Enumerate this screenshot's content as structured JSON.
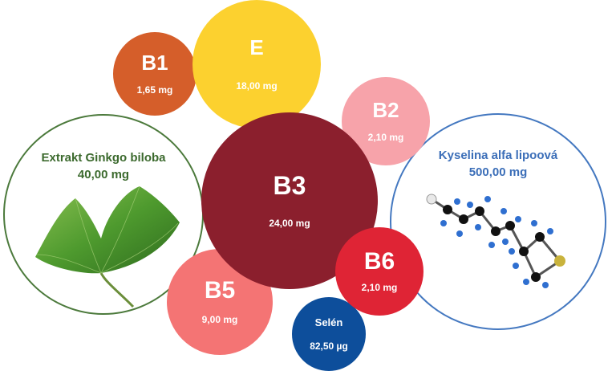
{
  "nutrients": {
    "b1": {
      "name": "B1",
      "amount": "1,65 mg",
      "color": "#D55E2A"
    },
    "e": {
      "name": "E",
      "amount": "18,00 mg",
      "color": "#FCD12F"
    },
    "b2": {
      "name": "B2",
      "amount": "2,10 mg",
      "color": "#F7A3AA"
    },
    "b3": {
      "name": "B3",
      "amount": "24,00 mg",
      "color": "#8B1F2D"
    },
    "b6": {
      "name": "B6",
      "amount": "2,10 mg",
      "color": "#DF2435"
    },
    "b5": {
      "name": "B5",
      "amount": "9,00 mg",
      "color": "#F47474"
    },
    "selen": {
      "name": "Selén",
      "amount": "82,50 µg",
      "color": "#0D4E9B"
    }
  },
  "ginkgo": {
    "name": "Extrakt Ginkgo biloba",
    "amount": "40,00 mg",
    "text_color": "#3C6A2E",
    "border_color": "#4C7A3C",
    "icon": "ginkgo-leaf-icon"
  },
  "lipoic": {
    "name": "Kyselina alfa lipoová",
    "amount": "500,00 mg",
    "text_color": "#3B6EB8",
    "border_color": "#4478C0",
    "icon": "molecule-icon"
  }
}
